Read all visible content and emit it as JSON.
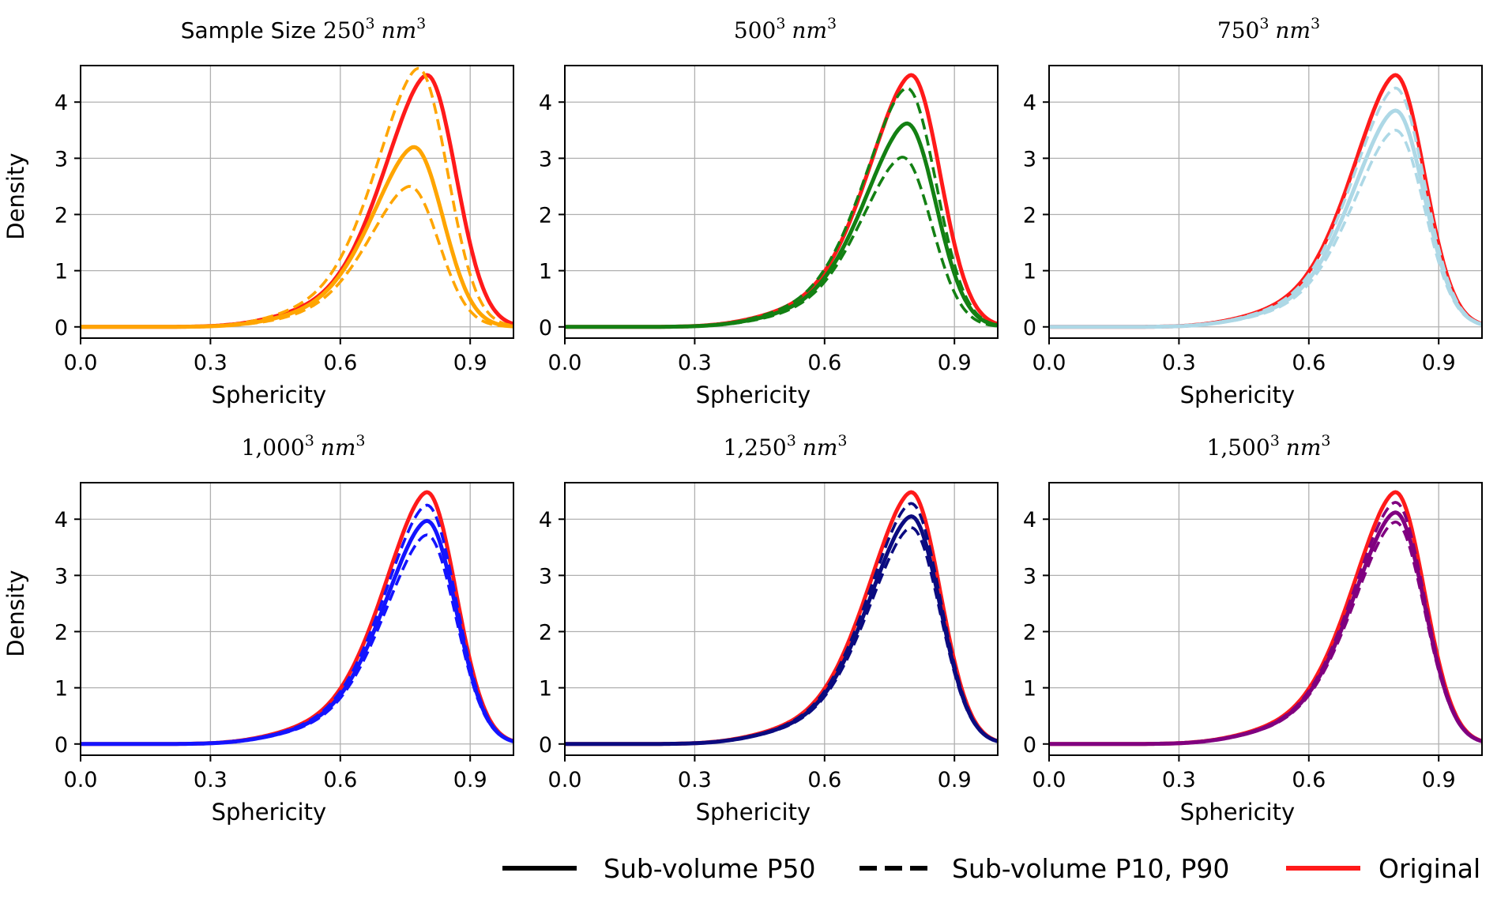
{
  "figure": {
    "legend": {
      "items": [
        {
          "label": "Sub-volume P50",
          "style": "solid",
          "color": "#000000"
        },
        {
          "label": "Sub-volume P10, P90",
          "style": "dashed",
          "color": "#000000"
        },
        {
          "label": "Original",
          "style": "solid",
          "color": "#ff1a1a"
        }
      ]
    }
  },
  "chart_data": [
    {
      "type": "line",
      "title": {
        "prefix": "Sample Size ",
        "number": "250",
        "exp": "3",
        "unit": "nm",
        "unit_exp": "3"
      },
      "xlabel": "Sphericity",
      "ylabel": "Density",
      "xlim": [
        0,
        1.0
      ],
      "ylim": [
        -0.2,
        4.65
      ],
      "xticks": [
        "0.0",
        "0.3",
        "0.6",
        "0.9"
      ],
      "yticks": [
        "0",
        "1",
        "2",
        "3",
        "4"
      ],
      "color": "#ffa500",
      "series": [
        {
          "name": "Original",
          "style": "solid",
          "mode": 0.8,
          "peak": 4.48
        },
        {
          "name": "Sub-volume P50",
          "style": "solid",
          "mode": 0.77,
          "peak": 3.2
        },
        {
          "name": "Sub-volume P90",
          "style": "dashed",
          "mode": 0.78,
          "peak": 4.6
        },
        {
          "name": "Sub-volume P10",
          "style": "dashed",
          "mode": 0.76,
          "peak": 2.5
        }
      ]
    },
    {
      "type": "line",
      "title": {
        "prefix": "",
        "number": "500",
        "exp": "3",
        "unit": "nm",
        "unit_exp": "3"
      },
      "xlabel": "Sphericity",
      "ylabel": "",
      "xlim": [
        0,
        1.0
      ],
      "ylim": [
        -0.2,
        4.65
      ],
      "xticks": [
        "0.0",
        "0.3",
        "0.6",
        "0.9"
      ],
      "yticks": [
        "0",
        "1",
        "2",
        "3",
        "4"
      ],
      "color": "#138013",
      "series": [
        {
          "name": "Original",
          "style": "solid",
          "mode": 0.8,
          "peak": 4.48
        },
        {
          "name": "Sub-volume P50",
          "style": "solid",
          "mode": 0.79,
          "peak": 3.62
        },
        {
          "name": "Sub-volume P90",
          "style": "dashed",
          "mode": 0.79,
          "peak": 4.25
        },
        {
          "name": "Sub-volume P10",
          "style": "dashed",
          "mode": 0.78,
          "peak": 3.02
        }
      ]
    },
    {
      "type": "line",
      "title": {
        "prefix": "",
        "number": "750",
        "exp": "3",
        "unit": "nm",
        "unit_exp": "3"
      },
      "xlabel": "Sphericity",
      "ylabel": "",
      "xlim": [
        0,
        1.0
      ],
      "ylim": [
        -0.2,
        4.65
      ],
      "xticks": [
        "0.0",
        "0.3",
        "0.6",
        "0.9"
      ],
      "yticks": [
        "0",
        "1",
        "2",
        "3",
        "4"
      ],
      "color": "#add8e6",
      "series": [
        {
          "name": "Original",
          "style": "solid",
          "mode": 0.8,
          "peak": 4.48
        },
        {
          "name": "Sub-volume P50",
          "style": "solid",
          "mode": 0.8,
          "peak": 3.85
        },
        {
          "name": "Sub-volume P90",
          "style": "dashed",
          "mode": 0.8,
          "peak": 4.25
        },
        {
          "name": "Sub-volume P10",
          "style": "dashed",
          "mode": 0.8,
          "peak": 3.5
        }
      ]
    },
    {
      "type": "line",
      "title": {
        "prefix": "",
        "number": "1,000",
        "exp": "3",
        "unit": "nm",
        "unit_exp": "3"
      },
      "xlabel": "Sphericity",
      "ylabel": "Density",
      "xlim": [
        0,
        1.0
      ],
      "ylim": [
        -0.2,
        4.65
      ],
      "xticks": [
        "0.0",
        "0.3",
        "0.6",
        "0.9"
      ],
      "yticks": [
        "0",
        "1",
        "2",
        "3",
        "4"
      ],
      "color": "#1414ff",
      "series": [
        {
          "name": "Original",
          "style": "solid",
          "mode": 0.8,
          "peak": 4.48
        },
        {
          "name": "Sub-volume P50",
          "style": "solid",
          "mode": 0.8,
          "peak": 3.97
        },
        {
          "name": "Sub-volume P90",
          "style": "dashed",
          "mode": 0.8,
          "peak": 4.25
        },
        {
          "name": "Sub-volume P10",
          "style": "dashed",
          "mode": 0.8,
          "peak": 3.72
        }
      ]
    },
    {
      "type": "line",
      "title": {
        "prefix": "",
        "number": "1,250",
        "exp": "3",
        "unit": "nm",
        "unit_exp": "3"
      },
      "xlabel": "Sphericity",
      "ylabel": "",
      "xlim": [
        0,
        1.0
      ],
      "ylim": [
        -0.2,
        4.65
      ],
      "xticks": [
        "0.0",
        "0.3",
        "0.6",
        "0.9"
      ],
      "yticks": [
        "0",
        "1",
        "2",
        "3",
        "4"
      ],
      "color": "#0b0b80",
      "series": [
        {
          "name": "Original",
          "style": "solid",
          "mode": 0.8,
          "peak": 4.48
        },
        {
          "name": "Sub-volume P50",
          "style": "solid",
          "mode": 0.8,
          "peak": 4.05
        },
        {
          "name": "Sub-volume P90",
          "style": "dashed",
          "mode": 0.8,
          "peak": 4.28
        },
        {
          "name": "Sub-volume P10",
          "style": "dashed",
          "mode": 0.8,
          "peak": 3.85
        }
      ]
    },
    {
      "type": "line",
      "title": {
        "prefix": "",
        "number": "1,500",
        "exp": "3",
        "unit": "nm",
        "unit_exp": "3"
      },
      "xlabel": "Sphericity",
      "ylabel": "",
      "xlim": [
        0,
        1.0
      ],
      "ylim": [
        -0.2,
        4.65
      ],
      "xticks": [
        "0.0",
        "0.3",
        "0.6",
        "0.9"
      ],
      "yticks": [
        "0",
        "1",
        "2",
        "3",
        "4"
      ],
      "color": "#800080",
      "series": [
        {
          "name": "Original",
          "style": "solid",
          "mode": 0.8,
          "peak": 4.48
        },
        {
          "name": "Sub-volume P50",
          "style": "solid",
          "mode": 0.8,
          "peak": 4.12
        },
        {
          "name": "Sub-volume P90",
          "style": "dashed",
          "mode": 0.8,
          "peak": 4.3
        },
        {
          "name": "Sub-volume P10",
          "style": "dashed",
          "mode": 0.8,
          "peak": 3.95
        }
      ]
    }
  ]
}
